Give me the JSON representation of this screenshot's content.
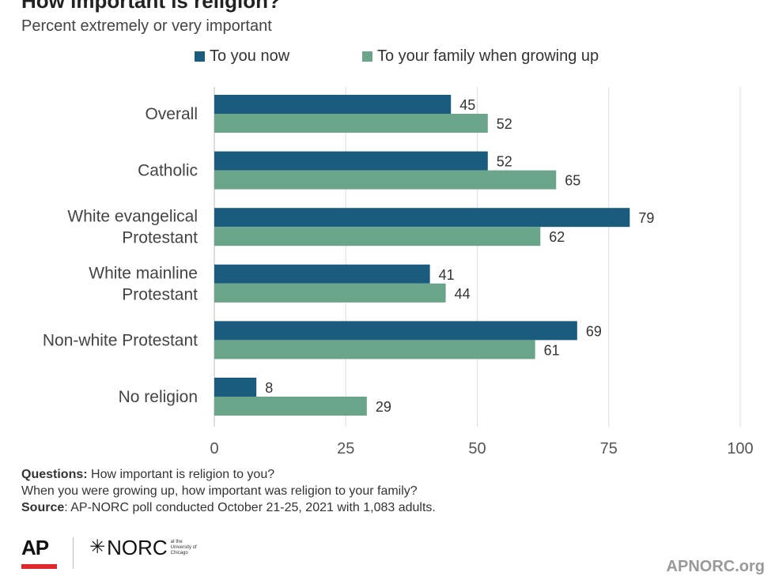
{
  "chart_data": {
    "type": "bar",
    "orientation": "horizontal",
    "title": "How important is religion?",
    "subtitle": "Percent extremely or very important",
    "categories": [
      [
        "Overall"
      ],
      [
        "Catholic"
      ],
      [
        "White evangelical",
        "Protestant"
      ],
      [
        "White mainline",
        "Protestant"
      ],
      [
        "Non-white Protestant"
      ],
      [
        "No religion"
      ]
    ],
    "series": [
      {
        "name": "To you now",
        "color": "#1b5c7e",
        "values": [
          45,
          52,
          79,
          41,
          69,
          8
        ]
      },
      {
        "name": "To your family when growing up",
        "color": "#6aa58a",
        "values": [
          52,
          65,
          62,
          44,
          61,
          29
        ]
      }
    ],
    "xlim": [
      0,
      100
    ],
    "xticks": [
      "0",
      "25",
      "50",
      "75",
      "100"
    ],
    "xtick_values": [
      0,
      25,
      50,
      75,
      100
    ],
    "grid": true,
    "legend": "top"
  },
  "notes": {
    "questions_label": "Questions:",
    "questions_text": "How important is religion to you?",
    "questions_text2": "When you were growing up, how important was religion to your family?",
    "source_label": "Source",
    "source_text": ": AP-NORC poll conducted October 21-25, 2021 with 1,083 adults."
  },
  "footer": {
    "ap_logo": "AP",
    "norc_logo": "NORC",
    "norc_sub": "at the University of Chicago",
    "site": "APNORC.org"
  },
  "colors": {
    "gridline": "#dddddd",
    "axis": "#bbbbbb",
    "ap_red": "#e0282e"
  }
}
